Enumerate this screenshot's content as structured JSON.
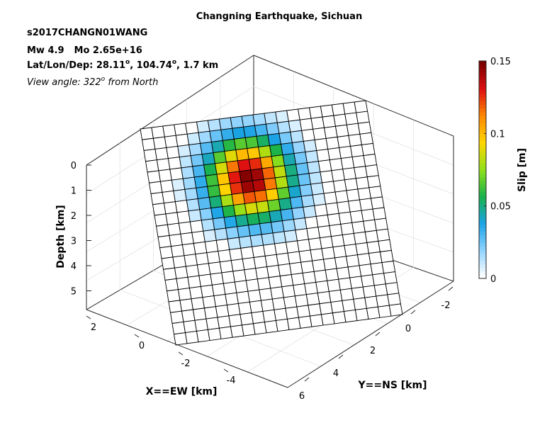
{
  "chart_data": {
    "type": "heatmap",
    "title": "Changning Earthquake, Sichuan",
    "info": {
      "event_id": "s2017CHANGN01WANG",
      "mw": "Mw 4.9",
      "mo": "Mo 2.65e+16",
      "location_prefix": "Lat/Lon/Dep: 28.11",
      "location_middle": ", 104.74",
      "location_suffix": ", 1.7 km",
      "degree_mark": "o",
      "view_prefix": "View angle: 322",
      "view_suffix": " from North"
    },
    "axes": {
      "depth_label": "Depth [km]",
      "depth_ticks": [
        "0",
        "1",
        "2",
        "3",
        "4",
        "5"
      ],
      "ew_label": "X==EW [km]",
      "ew_ticks": [
        "2",
        "0",
        "-2",
        "-4"
      ],
      "ns_label": "Y==NS [km]",
      "ns_ticks": [
        "-2",
        "0",
        "2",
        "4",
        "6"
      ],
      "grid": true,
      "view_azimuth_deg": 322
    },
    "colorbar": {
      "label": "Slip [m]",
      "ticks": [
        "0",
        "0.05",
        "0.1",
        "0.15"
      ],
      "range": [
        0,
        0.15
      ],
      "colormap": [
        "#ffffff",
        "#8fd3ff",
        "#1aa3e6",
        "#19b24b",
        "#8ee01a",
        "#ffd700",
        "#ff8a00",
        "#e01010",
        "#7a0000"
      ]
    },
    "fault_grid": {
      "rows": 20,
      "cols": 20
    },
    "slip_model": {
      "peak_slip_m": 0.15,
      "center_row": 5.3,
      "center_col": 8.3,
      "row_sigma": 2.6,
      "col_sigma": 2.5,
      "cutoff_m": 0.006
    }
  }
}
